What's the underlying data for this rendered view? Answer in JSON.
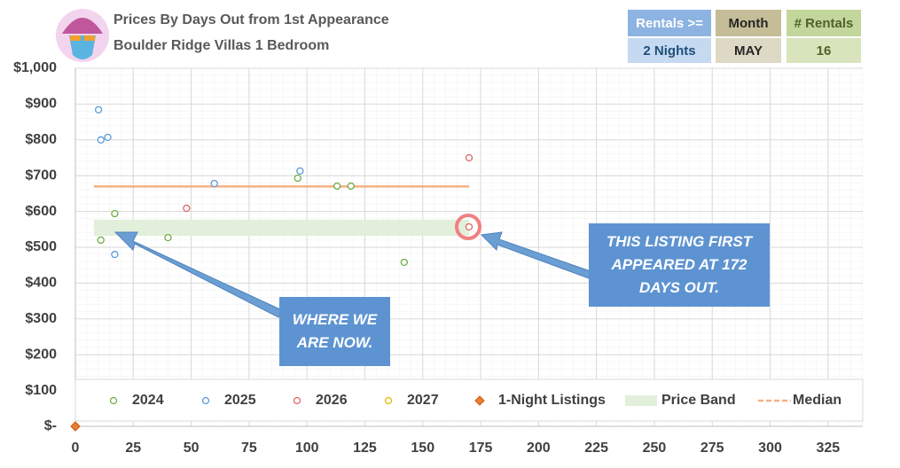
{
  "header": {
    "title": "Prices By Days Out from 1st Appearance",
    "subtitle": "Boulder Ridge Villas 1 Bedroom"
  },
  "filters": [
    {
      "label": "Rentals >=",
      "value": "2 Nights"
    },
    {
      "label": "Month",
      "value": "MAY"
    },
    {
      "label": "# Rentals",
      "value": "16"
    }
  ],
  "chart_data": {
    "type": "scatter",
    "xlim": [
      0,
      340
    ],
    "xticks": [
      0,
      25,
      50,
      75,
      100,
      125,
      150,
      175,
      200,
      225,
      250,
      275,
      300,
      325
    ],
    "ylim": [
      0,
      1000
    ],
    "yticks": [
      {
        "value": 0,
        "label": "$-"
      },
      {
        "value": 100,
        "label": "$100"
      },
      {
        "value": 200,
        "label": "$200"
      },
      {
        "value": 300,
        "label": "$300"
      },
      {
        "value": 400,
        "label": "$400"
      },
      {
        "value": 500,
        "label": "$500"
      },
      {
        "value": 600,
        "label": "$600"
      },
      {
        "value": 700,
        "label": "$700"
      },
      {
        "value": 800,
        "label": "$800"
      },
      {
        "value": 900,
        "label": "$900"
      },
      {
        "value": 1000,
        "label": "$1,000"
      }
    ],
    "grid": true,
    "legend": "bottom",
    "series": [
      {
        "name": "2024",
        "color": "#70ad47",
        "marker": "circle",
        "x": [
          11,
          17,
          40,
          96,
          113,
          119,
          142
        ],
        "values": [
          520,
          594,
          527,
          693,
          671,
          671,
          458
        ]
      },
      {
        "name": "2025",
        "color": "#5b9bd5",
        "marker": "circle",
        "x": [
          10,
          11,
          14,
          17,
          60,
          97
        ],
        "values": [
          884,
          800,
          807,
          480,
          678,
          713
        ]
      },
      {
        "name": "2026",
        "color": "#e06666",
        "marker": "circle",
        "x": [
          48,
          170,
          170
        ],
        "values": [
          609,
          750,
          557
        ]
      },
      {
        "name": "2027",
        "color": "#e6b800",
        "marker": "circle",
        "x": [],
        "values": []
      },
      {
        "name": "1-Night Listings",
        "color": "#ed7d31",
        "marker": "diamond",
        "x": [
          0
        ],
        "values": [
          0
        ]
      }
    ],
    "price_band": {
      "name": "Price Band",
      "color": "#e2efda",
      "x": [
        8,
        170
      ],
      "values": [
        532,
        577
      ]
    },
    "median": {
      "name": "Median",
      "color": "#f4b183",
      "x": [
        8,
        170
      ],
      "values": [
        670,
        670
      ]
    },
    "annotations": [
      {
        "text": "WHERE WE ARE NOW."
      },
      {
        "text": "THIS LISTING FIRST APPEARED AT 172 DAYS OUT."
      }
    ]
  }
}
